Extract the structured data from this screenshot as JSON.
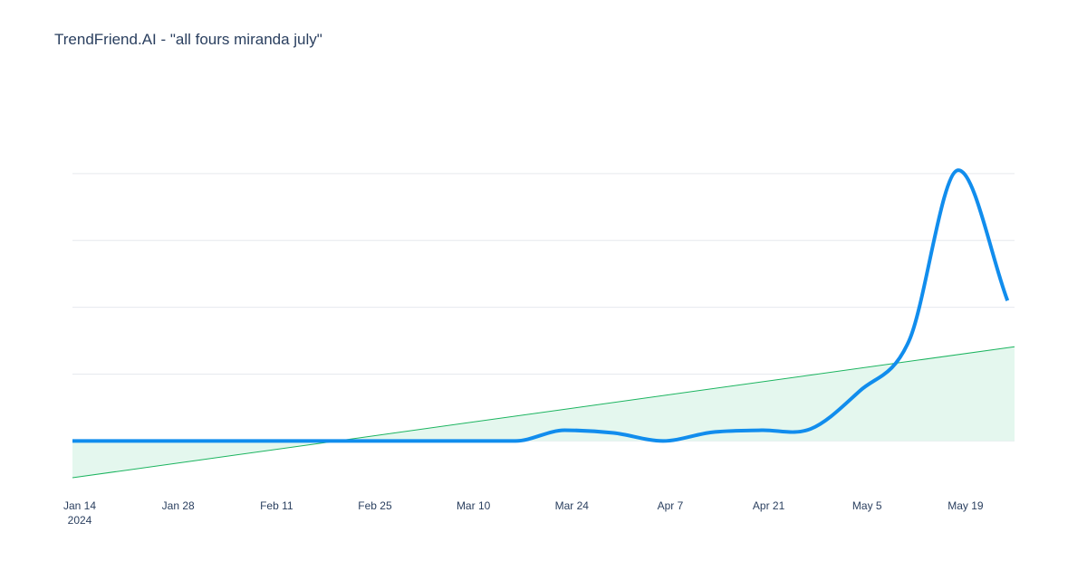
{
  "chart_data": {
    "type": "line",
    "title": "TrendFriend.AI - \"all fours miranda july\"",
    "xlabel": "",
    "ylabel": "",
    "x_start": "2024-01-14",
    "x_end": "2024-05-27",
    "x_ticks": [
      {
        "date": "2024-01-14",
        "label": "Jan 14",
        "sublabel": "2024"
      },
      {
        "date": "2024-01-28",
        "label": "Jan 28"
      },
      {
        "date": "2024-02-11",
        "label": "Feb 11"
      },
      {
        "date": "2024-02-25",
        "label": "Feb 25"
      },
      {
        "date": "2024-03-10",
        "label": "Mar 10"
      },
      {
        "date": "2024-03-24",
        "label": "Mar 24"
      },
      {
        "date": "2024-04-07",
        "label": "Apr 7"
      },
      {
        "date": "2024-04-21",
        "label": "Apr 21"
      },
      {
        "date": "2024-05-05",
        "label": "May 5"
      },
      {
        "date": "2024-05-19",
        "label": "May 19"
      }
    ],
    "ylim": [
      -0.55,
      5.0
    ],
    "y_gridlines": [
      0,
      1,
      2,
      3,
      4
    ],
    "show_y_tick_labels": false,
    "grid": true,
    "series": [
      {
        "role": "interest",
        "color": "#118ded",
        "points": [
          {
            "x": "2024-01-14",
            "y": 0
          },
          {
            "x": "2024-01-28",
            "y": 0
          },
          {
            "x": "2024-02-11",
            "y": 0
          },
          {
            "x": "2024-02-25",
            "y": 0
          },
          {
            "x": "2024-03-10",
            "y": 0
          },
          {
            "x": "2024-03-17",
            "y": 0
          },
          {
            "x": "2024-03-24",
            "y": 0.16
          },
          {
            "x": "2024-03-31",
            "y": 0.12
          },
          {
            "x": "2024-04-07",
            "y": 0
          },
          {
            "x": "2024-04-14",
            "y": 0.13
          },
          {
            "x": "2024-04-21",
            "y": 0.16
          },
          {
            "x": "2024-04-28",
            "y": 0.18
          },
          {
            "x": "2024-05-05",
            "y": 0.75
          },
          {
            "x": "2024-05-12",
            "y": 1.5
          },
          {
            "x": "2024-05-19",
            "y": 4.05
          },
          {
            "x": "2024-05-26",
            "y": 2.1
          }
        ]
      },
      {
        "role": "trend",
        "color": "#1bb45f",
        "fill": "#e4f7ee",
        "points": [
          {
            "x": "2024-01-14",
            "y": -0.55
          },
          {
            "x": "2024-05-27",
            "y": 1.41
          }
        ]
      }
    ]
  }
}
